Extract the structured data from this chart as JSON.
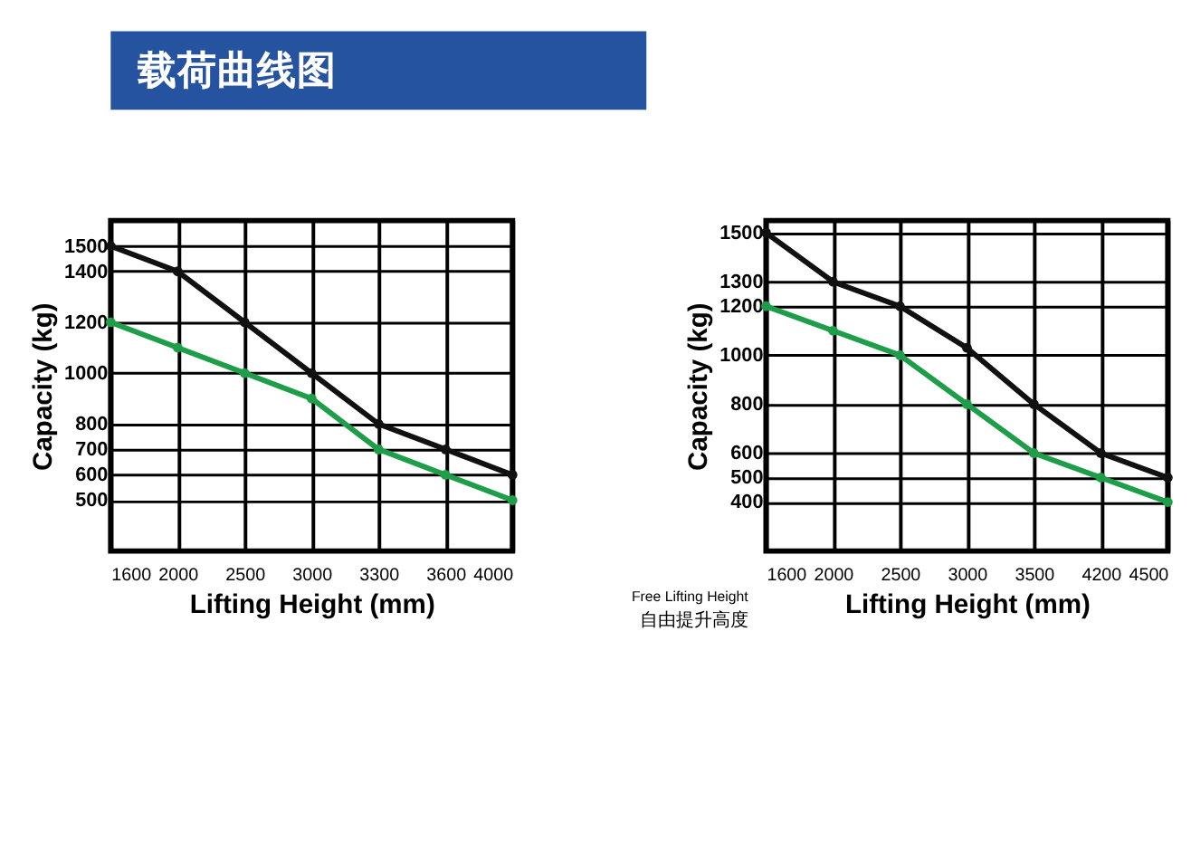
{
  "chart_data": [
    {
      "type": "line",
      "title": "载荷曲线图",
      "xlabel": "Lifting Height (mm)",
      "ylabel": "Capacity (kg)",
      "categories": [
        "1600",
        "2000",
        "2500",
        "3000",
        "3300",
        "3600",
        "4000"
      ],
      "series": [
        {
          "color": "#111111",
          "values": [
            1500,
            1400,
            1200,
            1000,
            800,
            700,
            600
          ]
        },
        {
          "color": "#1e9e48",
          "values": [
            1200,
            1100,
            1000,
            900,
            700,
            600,
            500
          ]
        }
      ],
      "ylim": [
        300,
        1600
      ],
      "yticks": [
        500,
        600,
        700,
        800,
        1000,
        1200,
        1400,
        1500
      ],
      "grid": true,
      "marker": "circle",
      "line_style": "solid",
      "legend": false
    },
    {
      "type": "line",
      "xlabel": "Lifting Height (mm)",
      "ylabel": "Capacity (kg)",
      "categories": [
        "1600",
        "2000",
        "2500",
        "3000",
        "3500",
        "4200",
        "4500"
      ],
      "series": [
        {
          "color": "#111111",
          "values": [
            1500,
            1300,
            1200,
            1030,
            800,
            600,
            500
          ]
        },
        {
          "color": "#1e9e48",
          "values": [
            1200,
            1100,
            1000,
            800,
            600,
            500,
            400
          ]
        }
      ],
      "ylim": [
        200,
        1550
      ],
      "yticks": [
        400,
        500,
        600,
        800,
        1000,
        1200,
        1300,
        1500
      ],
      "grid": true,
      "marker": "circle",
      "line_style": "solid",
      "legend": false,
      "annotations": [
        "Free Lifting Height",
        "自由提升高度"
      ]
    }
  ]
}
